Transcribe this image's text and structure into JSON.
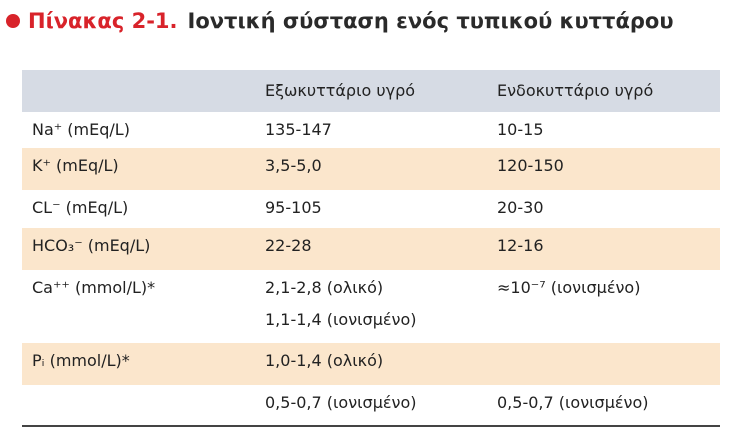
{
  "title": {
    "number": "Πίνακας 2-1.",
    "text": "Ιοντική σύσταση ενός τυπικού κυττάρου"
  },
  "table": {
    "headers": [
      "Εξωκυττάριο υγρό",
      "Ενδοκυττάριο υγρό"
    ],
    "rows": [
      {
        "label": "Na⁺ (mEq/L)",
        "extracellular": [
          "135-147"
        ],
        "intracellular": "10-15"
      },
      {
        "label": "K⁺ (mEq/L)",
        "extracellular": [
          "3,5-5,0"
        ],
        "intracellular": "120-150"
      },
      {
        "label": "CL⁻ (mEq/L)",
        "extracellular": [
          "95-105"
        ],
        "intracellular": "20-30"
      },
      {
        "label": "HCO₃⁻ (mEq/L)",
        "extracellular": [
          "22-28"
        ],
        "intracellular": "12-16"
      },
      {
        "label": "Ca⁺⁺ (mmol/L)*",
        "extracellular": [
          "2,1-2,8 (ολικό)",
          "1,1-1,4 (ιονισμένο)"
        ],
        "intracellular": "≈10⁻⁷ (ιονισμένο)"
      },
      {
        "label": "Pᵢ (mmol/L)*",
        "extracellular": [
          "1,0-1,4 (ολικό)"
        ]
      },
      {
        "extracellular": [
          "0,5-0,7 (ιονισμένο)"
        ],
        "intracellular": "0,5-0,7 (ιονισμένο)"
      }
    ]
  }
}
